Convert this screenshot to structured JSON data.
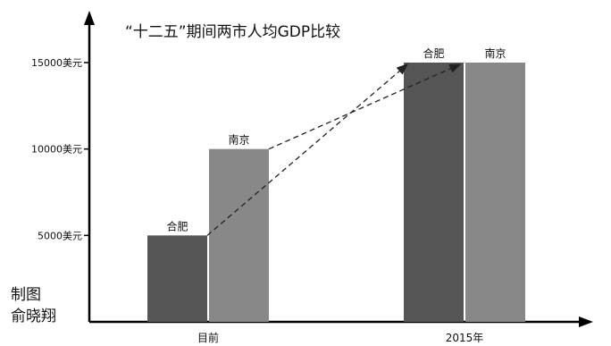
{
  "chart_data": {
    "type": "bar",
    "title": "“十二五”期间两市人均GDP比较",
    "categories": [
      "目前",
      "2015年"
    ],
    "series": [
      {
        "name": "合肥",
        "values": [
          5000,
          15000
        ]
      },
      {
        "name": "南京",
        "values": [
          10000,
          15000
        ]
      }
    ],
    "bar_labels": [
      [
        "合肥",
        "南京"
      ],
      [
        "合肥",
        "南京"
      ]
    ],
    "yticks": [
      {
        "value": 5000,
        "label": "5000美元"
      },
      {
        "value": 10000,
        "label": "10000美元"
      },
      {
        "value": 15000,
        "label": "15000美元"
      }
    ],
    "ylim": [
      0,
      15000
    ],
    "grid": false,
    "legend": "none",
    "annotations": [
      "dashed arrows from each city's current bar top to its 2015 bar top"
    ],
    "colors": {
      "合肥": "#555555",
      "南京": "#888888",
      "axis": "#000000"
    }
  },
  "credit": {
    "line1": "制图",
    "line2": "俞晓翔"
  }
}
